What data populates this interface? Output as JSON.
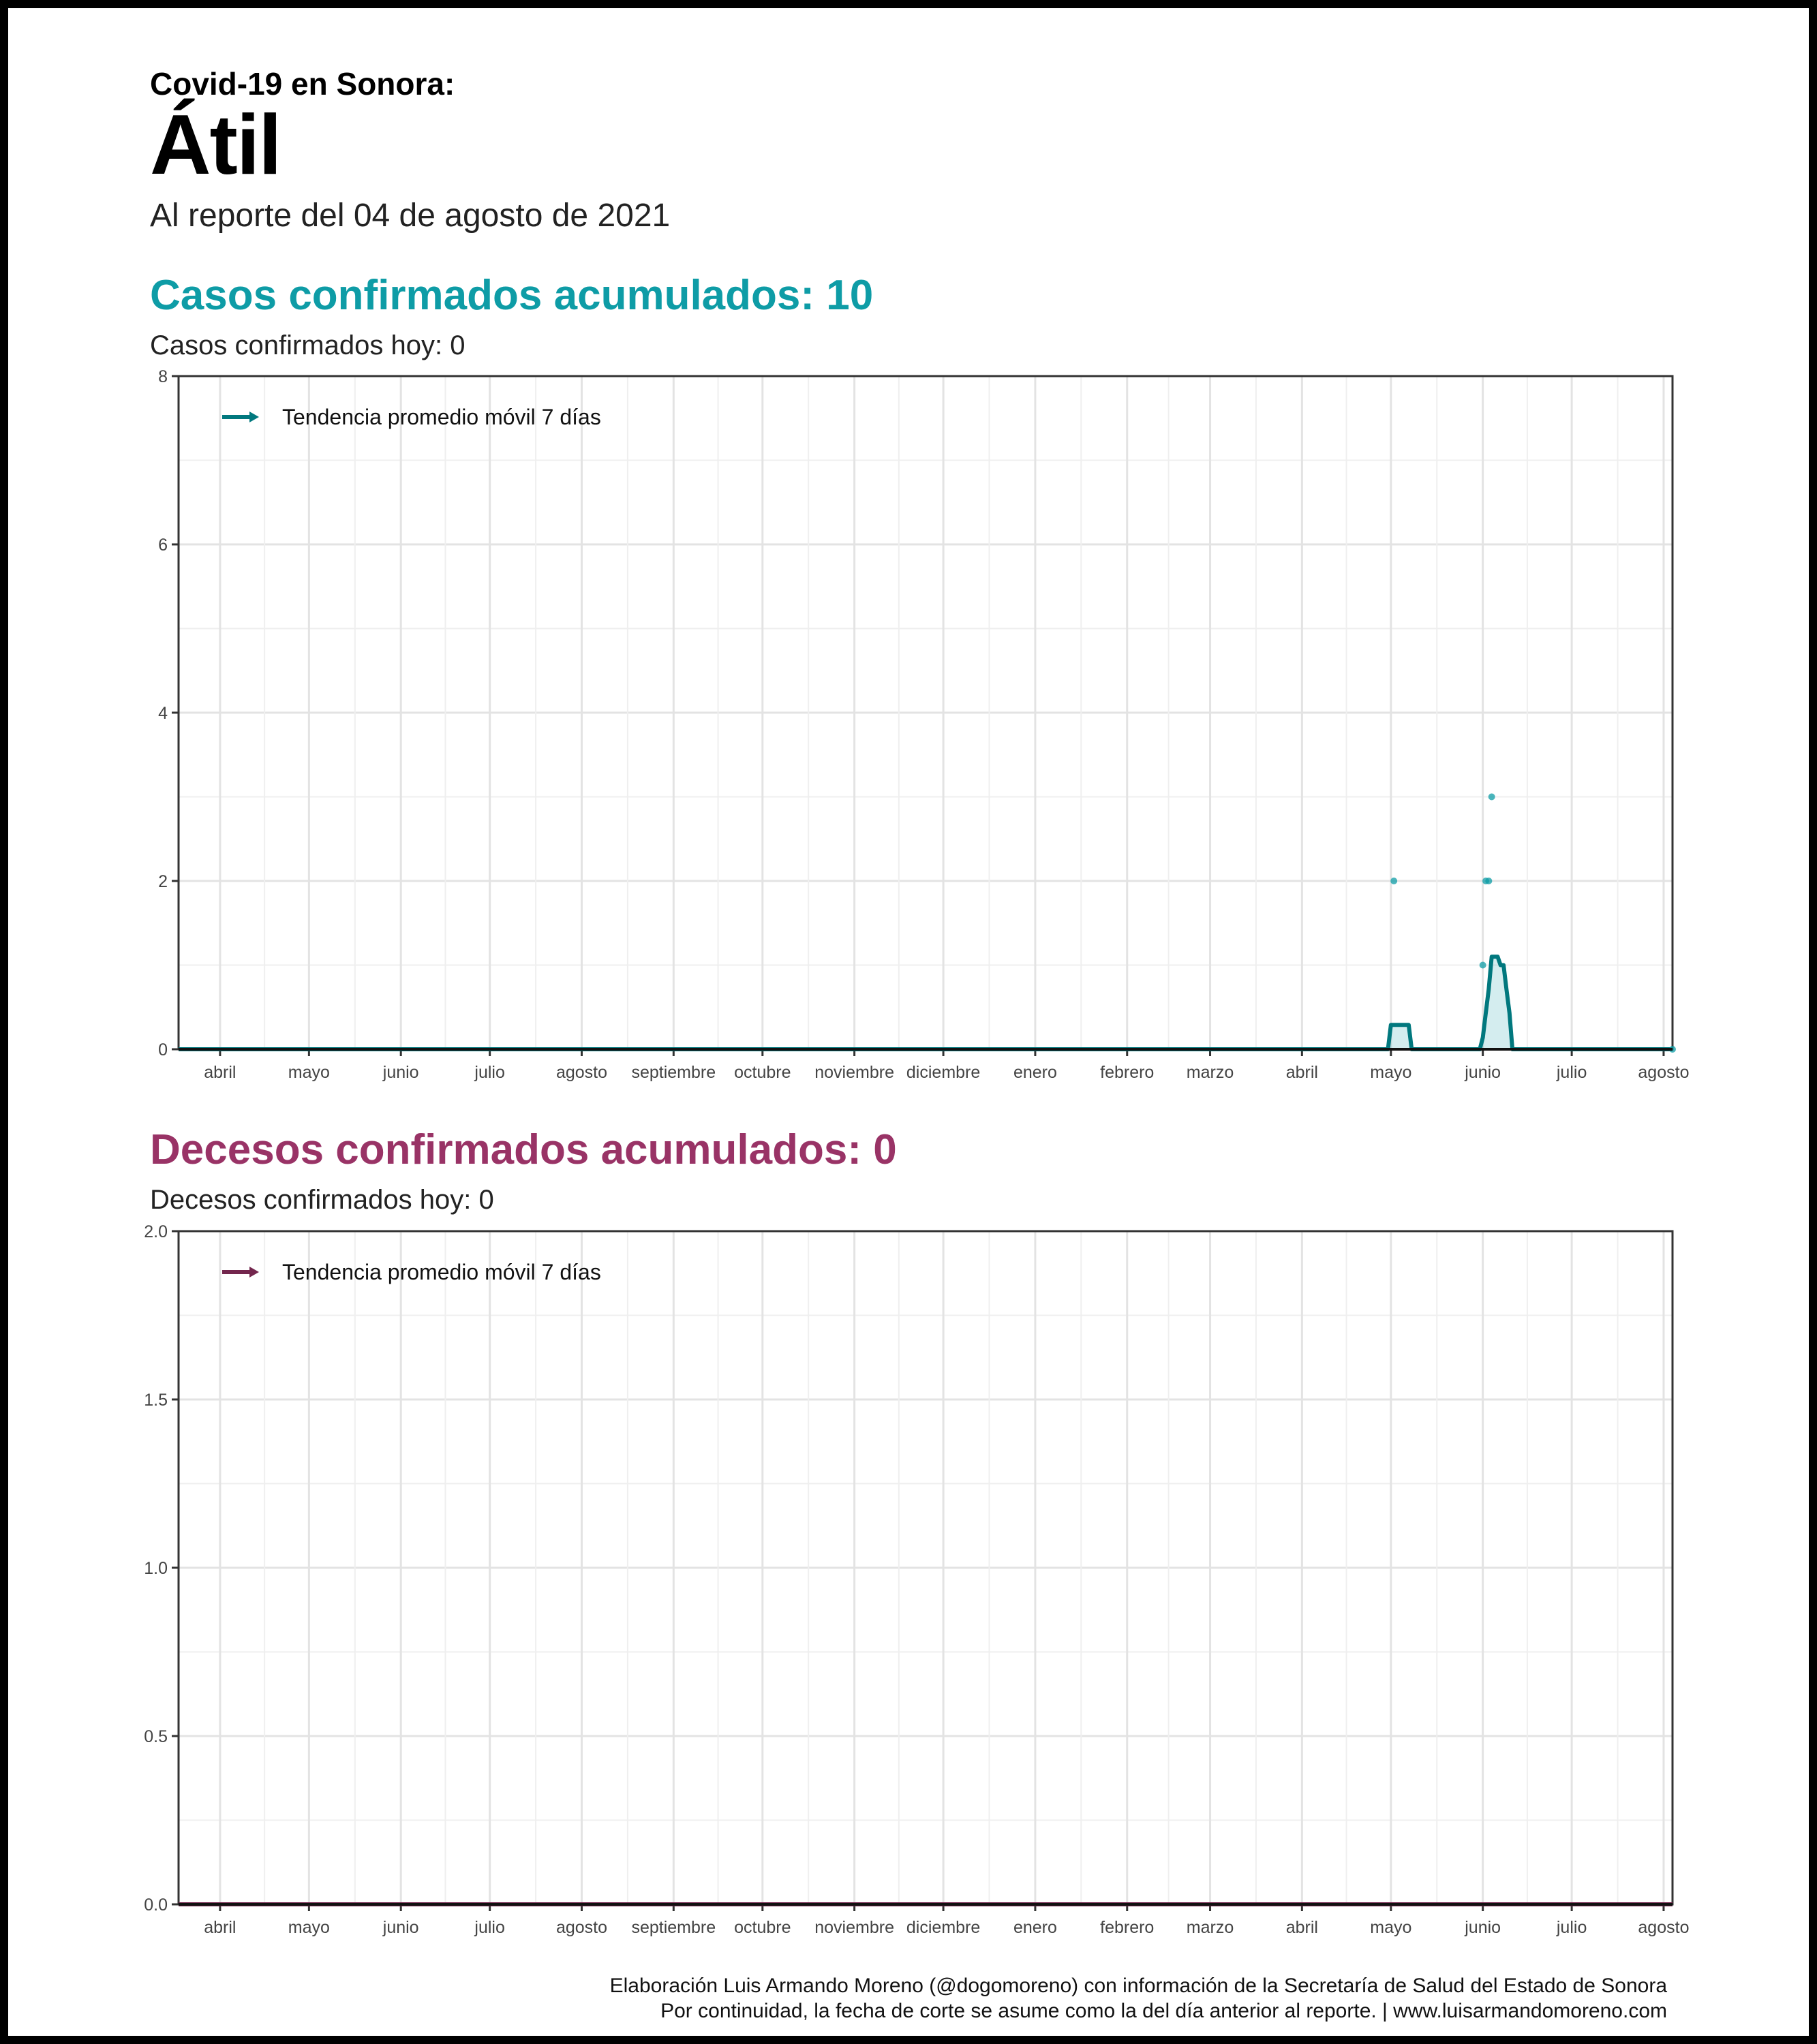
{
  "header": {
    "kicker": "Covid-19 en Sonora:",
    "place": "Átil",
    "report_date": "Al reporte del 04 de agosto de 2021"
  },
  "cases": {
    "title": "Casos confirmados acumulados: 10",
    "subtitle": "Casos confirmados hoy: 0",
    "legend": "Tendencia promedio móvil 7 días"
  },
  "deaths": {
    "title": "Decesos confirmados acumulados: 0",
    "subtitle": "Decesos confirmados hoy: 0",
    "legend": "Tendencia promedio móvil 7 días"
  },
  "footer": {
    "line1": "Elaboración Luis Armando Moreno (@dogomoreno) con información de la Secretaría de Salud del Estado de Sonora",
    "line2": "Por continuidad, la fecha de corte se asume como la del día anterior al reporte. | www.luisarmandomoreno.com"
  },
  "colors": {
    "cases_accent": "#0e9ca6",
    "cases_line": "#01787e",
    "deaths_accent": "#993366",
    "deaths_line": "#73264d"
  },
  "chart_data": [
    {
      "id": "cases",
      "type": "line",
      "title": "",
      "xlabel": "",
      "ylabel": "",
      "x_axis": "date",
      "xlim": [
        "2020-03-18",
        "2021-08-04"
      ],
      "ylim": [
        0,
        8
      ],
      "y_ticks": [
        0,
        2,
        4,
        6,
        8
      ],
      "x_tick_labels": [
        {
          "date": "2020-04-01",
          "label": "abril"
        },
        {
          "date": "2020-05-01",
          "label": "mayo"
        },
        {
          "date": "2020-06-01",
          "label": "junio"
        },
        {
          "date": "2020-07-01",
          "label": "julio"
        },
        {
          "date": "2020-08-01",
          "label": "agosto"
        },
        {
          "date": "2020-09-01",
          "label": "septiembre"
        },
        {
          "date": "2020-10-01",
          "label": "octubre"
        },
        {
          "date": "2020-11-01",
          "label": "noviembre"
        },
        {
          "date": "2020-12-01",
          "label": "diciembre"
        },
        {
          "date": "2021-01-01",
          "label": "enero"
        },
        {
          "date": "2021-02-01",
          "label": "febrero"
        },
        {
          "date": "2021-03-01",
          "label": "marzo"
        },
        {
          "date": "2021-04-01",
          "label": "abril"
        },
        {
          "date": "2021-05-01",
          "label": "mayo"
        },
        {
          "date": "2021-06-01",
          "label": "junio"
        },
        {
          "date": "2021-07-01",
          "label": "julio"
        },
        {
          "date": "2021-08-01",
          "label": "agosto"
        }
      ],
      "grid": true,
      "legend_position": "top-left",
      "series": [
        {
          "name": "Tendencia promedio móvil 7 días",
          "kind": "line",
          "points": [
            [
              "2020-03-18",
              0
            ],
            [
              "2021-04-30",
              0
            ],
            [
              "2021-05-01",
              0.29
            ],
            [
              "2021-05-07",
              0.29
            ],
            [
              "2021-05-08",
              0
            ],
            [
              "2021-05-31",
              0
            ],
            [
              "2021-06-01",
              0.14
            ],
            [
              "2021-06-02",
              0.43
            ],
            [
              "2021-06-03",
              0.71
            ],
            [
              "2021-06-04",
              1.1
            ],
            [
              "2021-06-06",
              1.1
            ],
            [
              "2021-06-07",
              1.0
            ],
            [
              "2021-06-08",
              1.0
            ],
            [
              "2021-06-09",
              0.71
            ],
            [
              "2021-06-10",
              0.43
            ],
            [
              "2021-06-11",
              0.0
            ],
            [
              "2021-08-04",
              0
            ]
          ]
        },
        {
          "name": "",
          "kind": "points",
          "points": [
            [
              "2021-05-02",
              2
            ],
            [
              "2021-06-01",
              1
            ],
            [
              "2021-06-02",
              2
            ],
            [
              "2021-06-03",
              2
            ],
            [
              "2021-06-04",
              3
            ],
            [
              "2021-08-04",
              0
            ]
          ]
        }
      ]
    },
    {
      "id": "deaths",
      "type": "line",
      "title": "",
      "xlabel": "",
      "ylabel": "",
      "x_axis": "date",
      "xlim": [
        "2020-03-18",
        "2021-08-04"
      ],
      "ylim": [
        0,
        2
      ],
      "y_ticks": [
        0.0,
        0.5,
        1.0,
        1.5,
        2.0
      ],
      "x_tick_labels": [
        {
          "date": "2020-04-01",
          "label": "abril"
        },
        {
          "date": "2020-05-01",
          "label": "mayo"
        },
        {
          "date": "2020-06-01",
          "label": "junio"
        },
        {
          "date": "2020-07-01",
          "label": "julio"
        },
        {
          "date": "2020-08-01",
          "label": "agosto"
        },
        {
          "date": "2020-09-01",
          "label": "septiembre"
        },
        {
          "date": "2020-10-01",
          "label": "octubre"
        },
        {
          "date": "2020-11-01",
          "label": "noviembre"
        },
        {
          "date": "2020-12-01",
          "label": "diciembre"
        },
        {
          "date": "2021-01-01",
          "label": "enero"
        },
        {
          "date": "2021-02-01",
          "label": "febrero"
        },
        {
          "date": "2021-03-01",
          "label": "marzo"
        },
        {
          "date": "2021-04-01",
          "label": "abril"
        },
        {
          "date": "2021-05-01",
          "label": "mayo"
        },
        {
          "date": "2021-06-01",
          "label": "junio"
        },
        {
          "date": "2021-07-01",
          "label": "julio"
        },
        {
          "date": "2021-08-01",
          "label": "agosto"
        }
      ],
      "grid": true,
      "legend_position": "top-left",
      "series": [
        {
          "name": "Tendencia promedio móvil 7 días",
          "kind": "line",
          "points": [
            [
              "2020-03-18",
              0
            ],
            [
              "2021-08-04",
              0
            ]
          ]
        }
      ]
    }
  ]
}
